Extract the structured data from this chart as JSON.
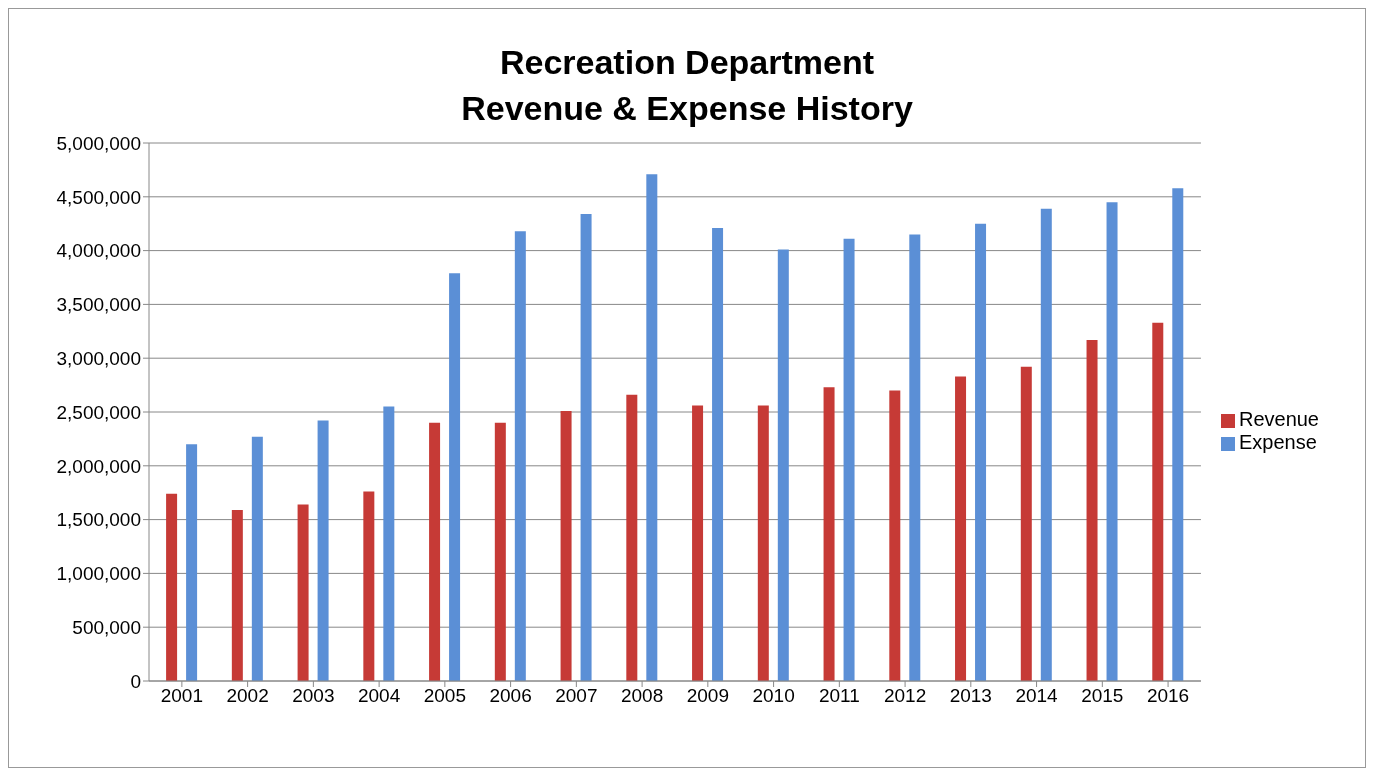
{
  "chart_data": {
    "type": "bar",
    "title": "Recreation Department\nRevenue & Expense History",
    "categories": [
      "2001",
      "2002",
      "2003",
      "2004",
      "2005",
      "2006",
      "2007",
      "2008",
      "2009",
      "2010",
      "2011",
      "2012",
      "2013",
      "2014",
      "2015",
      "2016"
    ],
    "series": [
      {
        "name": "Revenue",
        "color": "#c63a36",
        "values": [
          1740000,
          1590000,
          1640000,
          1760000,
          2400000,
          2400000,
          2510000,
          2660000,
          2560000,
          2560000,
          2730000,
          2700000,
          2830000,
          2920000,
          3170000,
          3330000
        ]
      },
      {
        "name": "Expense",
        "color": "#5b8fd6",
        "values": [
          2200000,
          2270000,
          2420000,
          2550000,
          3790000,
          4180000,
          4340000,
          4710000,
          4210000,
          4010000,
          4110000,
          4150000,
          4250000,
          4390000,
          4450000,
          4580000
        ]
      }
    ],
    "ylim": [
      0,
      5000000
    ],
    "yticks": [
      0,
      {
        "value": 500000,
        "label": "500,000"
      },
      {
        "value": 1000000,
        "label": "1,000,000"
      },
      {
        "value": 1500000,
        "label": "1,500,000"
      },
      {
        "value": 2000000,
        "label": "2,000,000"
      },
      {
        "value": 2500000,
        "label": "2,500,000"
      },
      {
        "value": 3000000,
        "label": "3,000,000"
      },
      {
        "value": 3500000,
        "label": "3,500,000"
      },
      {
        "value": 4000000,
        "label": "4,000,000"
      },
      {
        "value": 4500000,
        "label": "4,500,000"
      },
      {
        "value": 5000000,
        "label": "5,000,000"
      }
    ],
    "grid": "y",
    "legend": "right"
  }
}
